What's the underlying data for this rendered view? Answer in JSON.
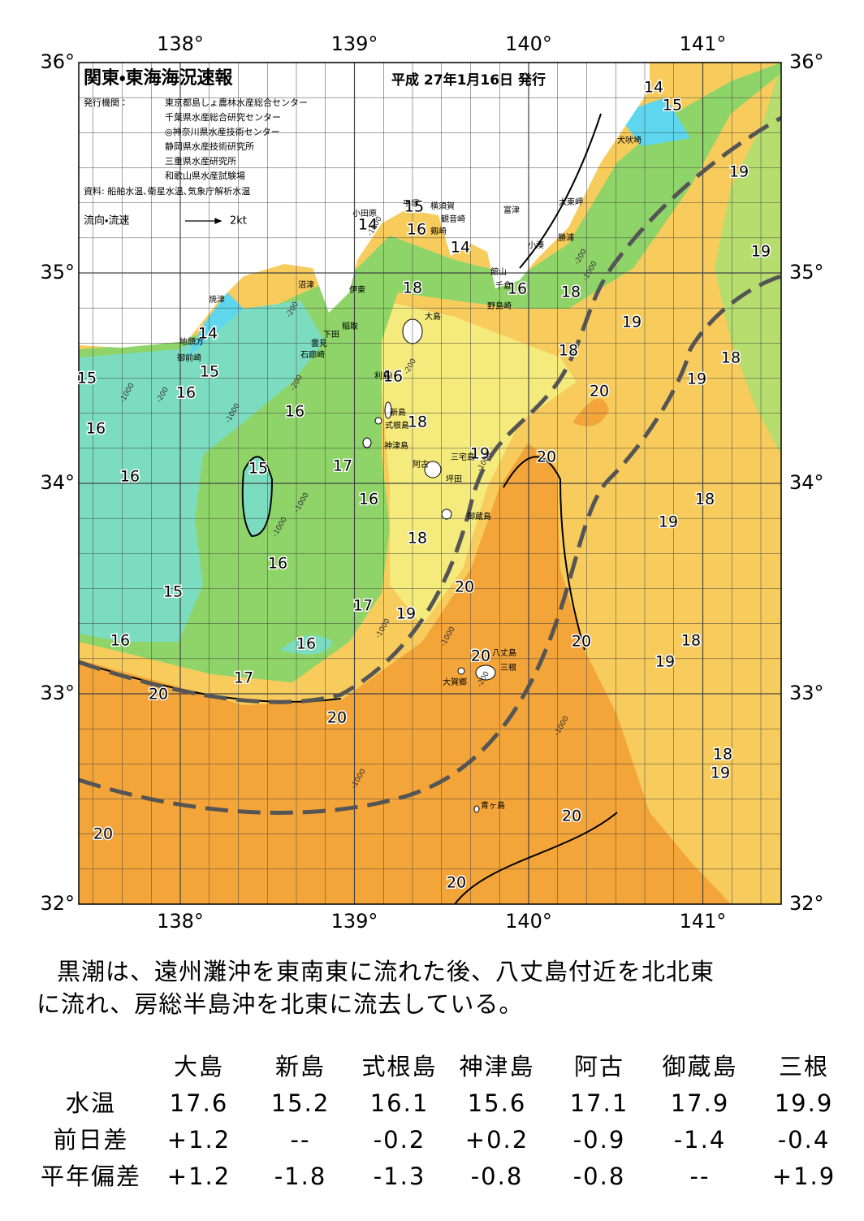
{
  "header": {
    "title": "関東・東海海況速報",
    "date": "平成 27年1月16日 発行",
    "issuer_label": "発行機関：",
    "issuers": [
      "東京都島しょ農林水産総合センター",
      "千葉県水産総合研究センター",
      "◎神奈川県水産技術センター",
      "静岡県水産技術研究所",
      "三重県水産研究所",
      "和歌山県水産試験場"
    ],
    "source": "資料: 船舶水温､衛星水温､気象庁解析水温",
    "flow_label": "流向・流速",
    "flow_scale": "2kt"
  },
  "map": {
    "lon_labels": [
      "138°",
      "139°",
      "140°",
      "141°"
    ],
    "lat_labels": [
      "36°",
      "35°",
      "34°",
      "33°",
      "32°"
    ],
    "isotherm_labels": [
      14,
      15,
      19,
      19,
      18,
      19,
      18,
      20,
      19,
      18,
      14,
      15,
      16,
      14,
      18,
      16,
      14,
      15,
      15,
      16,
      16,
      16,
      18,
      16,
      16,
      15,
      17,
      16,
      19,
      20,
      18,
      19,
      18,
      16,
      20,
      15,
      17,
      19,
      16,
      16,
      20,
      18,
      19,
      20,
      17,
      20,
      20,
      18,
      19,
      20,
      20,
      20
    ],
    "place_names": [
      "犬吠埼",
      "太東岬",
      "勝浦",
      "小湊",
      "富津",
      "横須賀",
      "観音崎",
      "剱崎",
      "館山",
      "千倉",
      "野島崎",
      "平塚",
      "小田原",
      "沼津",
      "伊東",
      "稲取",
      "下田",
      "雲見",
      "石廊崎",
      "焼津",
      "地頭方",
      "御前崎",
      "大島",
      "利島",
      "新島",
      "式根島",
      "神津島",
      "三宅島",
      "阿古",
      "坪田",
      "御蔵島",
      "八丈島",
      "三根",
      "大賀郷",
      "青ヶ島"
    ],
    "depth_labels": [
      "-1000",
      "-200",
      "-1000",
      "-200",
      "-1000",
      "-200",
      "-1000",
      "-1000",
      "-200",
      "-1000",
      "-1000",
      "-200",
      "-1000",
      "-1000",
      "-1000",
      "-200",
      "-1000"
    ]
  },
  "summary": [
    "黒潮は、遠州灘沖を東南東に流れた後、八丈島付近を北北東",
    "に流れ、房総半島沖を北東に流去している。"
  ],
  "table": {
    "columns": [
      "大島",
      "新島",
      "式根島",
      "神津島",
      "阿古",
      "御蔵島",
      "三根"
    ],
    "rows": [
      {
        "label": "水温",
        "cells": [
          "17.6",
          "15.2",
          "16.1",
          "15.6",
          "17.1",
          "17.9",
          "19.9"
        ]
      },
      {
        "label": "前日差",
        "cells": [
          "+1.2",
          "--",
          "-0.2",
          "+0.2",
          "-0.9",
          "-1.4",
          "-0.4"
        ]
      },
      {
        "label": "平年偏差",
        "cells": [
          "+1.2",
          "-1.8",
          "-1.3",
          "-0.8",
          "-0.8",
          "--",
          "+1.9"
        ]
      }
    ]
  }
}
